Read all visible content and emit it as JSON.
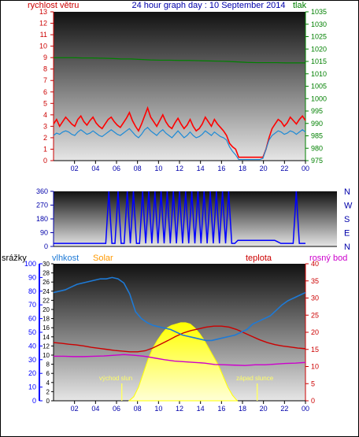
{
  "header": {
    "title": "24 hour graph day : 10 September 2014",
    "left_label": "rychlost větru",
    "right_label": "tlak"
  },
  "legend": {
    "srazky": "srážky",
    "vlhkost": "vlhkost",
    "solar": "Solar",
    "teplota": "teplota",
    "rosny_bod": "rosný bod"
  },
  "annotations": {
    "sunrise": "východ slun",
    "sunset": "západ slunce"
  },
  "colors": {
    "wind_speed": "#ff0000",
    "wind_avg": "#1e8bd6",
    "pressure": "#008000",
    "direction": "#0000ff",
    "temperature": "#cc0000",
    "humidity": "#1e7ad6",
    "dewpoint": "#cc00cc",
    "solar": "#ffff00",
    "rain": "#0000ff"
  },
  "chart_data": [
    {
      "type": "line",
      "name": "wind and pressure",
      "x_ticks": [
        "02",
        "04",
        "06",
        "08",
        "10",
        "12",
        "14",
        "16",
        "18",
        "20",
        "22",
        "00"
      ],
      "left_axis": {
        "ticks": [
          0,
          1,
          2,
          3,
          4,
          5,
          6,
          7,
          8,
          9,
          10,
          11,
          12,
          13
        ],
        "range": [
          0,
          13
        ]
      },
      "right_axis": {
        "ticks": [
          975,
          980,
          985,
          990,
          995,
          1000,
          1005,
          1010,
          1015,
          1020,
          1025,
          1030,
          1035
        ],
        "range": [
          975,
          1035
        ]
      },
      "series": [
        {
          "name": "rychlost větru",
          "axis": "left",
          "x_range": [
            0,
            24
          ],
          "values": [
            3.2,
            3.6,
            3.0,
            3.4,
            3.8,
            3.5,
            3.2,
            3.0,
            3.6,
            3.9,
            3.4,
            3.1,
            3.5,
            3.8,
            3.3,
            3.0,
            2.8,
            3.2,
            3.6,
            3.8,
            3.4,
            3.1,
            2.9,
            3.3,
            3.7,
            4.2,
            3.5,
            3.0,
            2.6,
            3.2,
            3.9,
            4.6,
            3.8,
            3.4,
            3.0,
            3.5,
            4.0,
            3.4,
            3.0,
            2.8,
            3.3,
            3.7,
            3.2,
            2.8,
            3.1,
            3.6,
            3.0,
            2.6,
            2.8,
            3.2,
            3.8,
            3.4,
            3.0,
            3.6,
            3.2,
            2.9,
            2.6,
            2.2,
            1.5,
            1.2,
            1.0,
            0.3,
            0.3,
            0.3,
            0.3,
            0.3,
            0.3,
            0.3,
            0.3,
            0.3,
            1.0,
            2.0,
            2.8,
            3.2,
            3.6,
            3.4,
            3.0,
            3.3,
            3.8,
            3.5,
            3.2,
            3.6,
            3.9,
            3.5
          ]
        },
        {
          "name": "wind average",
          "axis": "left",
          "x_range": [
            0,
            24
          ],
          "values": [
            2.2,
            2.4,
            2.3,
            2.5,
            2.6,
            2.5,
            2.3,
            2.2,
            2.5,
            2.7,
            2.5,
            2.3,
            2.4,
            2.6,
            2.4,
            2.2,
            2.1,
            2.3,
            2.5,
            2.7,
            2.5,
            2.3,
            2.2,
            2.4,
            2.6,
            2.8,
            2.5,
            2.2,
            2.0,
            2.3,
            2.7,
            2.9,
            2.6,
            2.4,
            2.2,
            2.5,
            2.7,
            2.4,
            2.2,
            2.0,
            2.3,
            2.6,
            2.3,
            2.0,
            2.2,
            2.5,
            2.2,
            2.0,
            2.1,
            2.3,
            2.6,
            2.4,
            2.2,
            2.5,
            2.3,
            2.1,
            2.0,
            1.8,
            1.2,
            0.8,
            0.5,
            0.1,
            0.1,
            0.1,
            0.1,
            0.1,
            0.1,
            0.1,
            0.1,
            0.2,
            1.0,
            1.8,
            2.2,
            2.4,
            2.6,
            2.5,
            2.3,
            2.4,
            2.6,
            2.5,
            2.3,
            2.5,
            2.7,
            2.5
          ]
        },
        {
          "name": "tlak",
          "axis": "right",
          "x_range": [
            0,
            24
          ],
          "values": [
            1016.5,
            1016.5,
            1016.5,
            1016.4,
            1016.4,
            1016.3,
            1016.2,
            1016.0,
            1016.0,
            1015.8,
            1015.6,
            1015.5,
            1015.5,
            1015.4,
            1015.4,
            1015.3,
            1015.2,
            1015.1,
            1015.0,
            1014.8,
            1014.6,
            1014.5,
            1014.5,
            1014.5,
            1014.4,
            1014.4,
            1014.4
          ]
        }
      ]
    },
    {
      "type": "scatter",
      "name": "wind direction",
      "x_ticks": [
        "02",
        "04",
        "06",
        "08",
        "10",
        "12",
        "14",
        "16",
        "18",
        "20",
        "22",
        "00"
      ],
      "left_axis": {
        "ticks": [
          0,
          90,
          180,
          270,
          360
        ],
        "range": [
          0,
          360
        ]
      },
      "right_axis_labels": [
        "N",
        "W",
        "S",
        "E",
        "N"
      ],
      "series": [
        {
          "name": "direction",
          "x_range": [
            0,
            24
          ],
          "values": [
            20,
            20,
            20,
            20,
            20,
            20,
            20,
            20,
            20,
            20,
            20,
            20,
            20,
            20,
            20,
            20,
            20,
            20,
            360,
            20,
            20,
            360,
            20,
            20,
            360,
            20,
            360,
            20,
            20,
            360,
            20,
            360,
            20,
            360,
            20,
            360,
            20,
            360,
            20,
            360,
            20,
            360,
            20,
            360,
            20,
            360,
            20,
            360,
            20,
            360,
            20,
            360,
            20,
            360,
            20,
            360,
            20,
            360,
            20,
            20,
            40,
            40,
            40,
            40,
            40,
            40,
            40,
            40,
            40,
            40,
            40,
            40,
            40,
            30,
            20,
            20,
            20,
            20,
            20,
            360,
            20,
            20,
            20
          ]
        }
      ]
    },
    {
      "type": "line",
      "name": "humidity temperature solar",
      "x_ticks": [
        "02",
        "04",
        "06",
        "08",
        "10",
        "12",
        "14",
        "16",
        "18",
        "20",
        "22",
        "00"
      ],
      "axes": [
        {
          "name": "srážky",
          "ticks": [
            0,
            10,
            20,
            30,
            40,
            50,
            60,
            70,
            80,
            90,
            100
          ],
          "range": [
            0,
            100
          ]
        },
        {
          "name": "vlhkost",
          "ticks": [
            0,
            2,
            4,
            6,
            8,
            10,
            12,
            14,
            16,
            18,
            20,
            22,
            24,
            26,
            28,
            30
          ],
          "range": [
            0,
            30
          ]
        },
        {
          "name": "teplota",
          "ticks": [
            0,
            5,
            10,
            15,
            20,
            25,
            30,
            35,
            40
          ],
          "range": [
            0,
            40
          ]
        }
      ],
      "series": [
        {
          "name": "vlhkost",
          "axis": "srážky",
          "x_range": [
            0,
            24
          ],
          "values": [
            79,
            80,
            81,
            83,
            85,
            86,
            87,
            88,
            89,
            89,
            90,
            89,
            86,
            78,
            65,
            60,
            57,
            55,
            54,
            53,
            52,
            50,
            48,
            47,
            46,
            45,
            44,
            44,
            45,
            46,
            47,
            48,
            50,
            52,
            56,
            58,
            60,
            62,
            66,
            70,
            73,
            75,
            77,
            79
          ]
        },
        {
          "name": "teplota",
          "axis": "teplota",
          "x_range": [
            0,
            24
          ],
          "values": [
            17.0,
            16.8,
            16.5,
            16.3,
            16.0,
            15.6,
            15.3,
            15.0,
            14.7,
            14.5,
            14.3,
            14.3,
            14.6,
            15.4,
            16.5,
            17.6,
            18.8,
            19.8,
            20.5,
            21.0,
            21.5,
            21.8,
            21.8,
            21.5,
            20.8,
            19.8,
            18.8,
            17.8,
            17.0,
            16.4,
            16.0,
            15.7,
            15.4,
            15.2
          ]
        },
        {
          "name": "rosný bod",
          "axis": "teplota",
          "x_range": [
            0,
            24
          ],
          "values": [
            13.0,
            13.0,
            12.9,
            12.9,
            13.0,
            13.1,
            13.3,
            13.5,
            13.3,
            13.0,
            12.5,
            12.0,
            11.6,
            11.4,
            11.2,
            11.0,
            10.6,
            10.5,
            10.4,
            10.3,
            10.5,
            10.5,
            10.7,
            10.9,
            11.0,
            11.2
          ]
        },
        {
          "name": "Solar",
          "axis": "srážky",
          "x_range": [
            7.2,
            17.5
          ],
          "values": [
            0,
            3,
            10,
            20,
            30,
            38,
            44,
            49,
            53,
            55,
            56,
            57,
            57,
            56,
            53,
            49,
            44,
            38,
            32,
            26,
            18,
            10,
            4,
            0
          ]
        }
      ],
      "markers": [
        {
          "label": "východ slun",
          "x": 6.5
        },
        {
          "label": "západ slunce",
          "x": 19.4
        }
      ]
    }
  ]
}
